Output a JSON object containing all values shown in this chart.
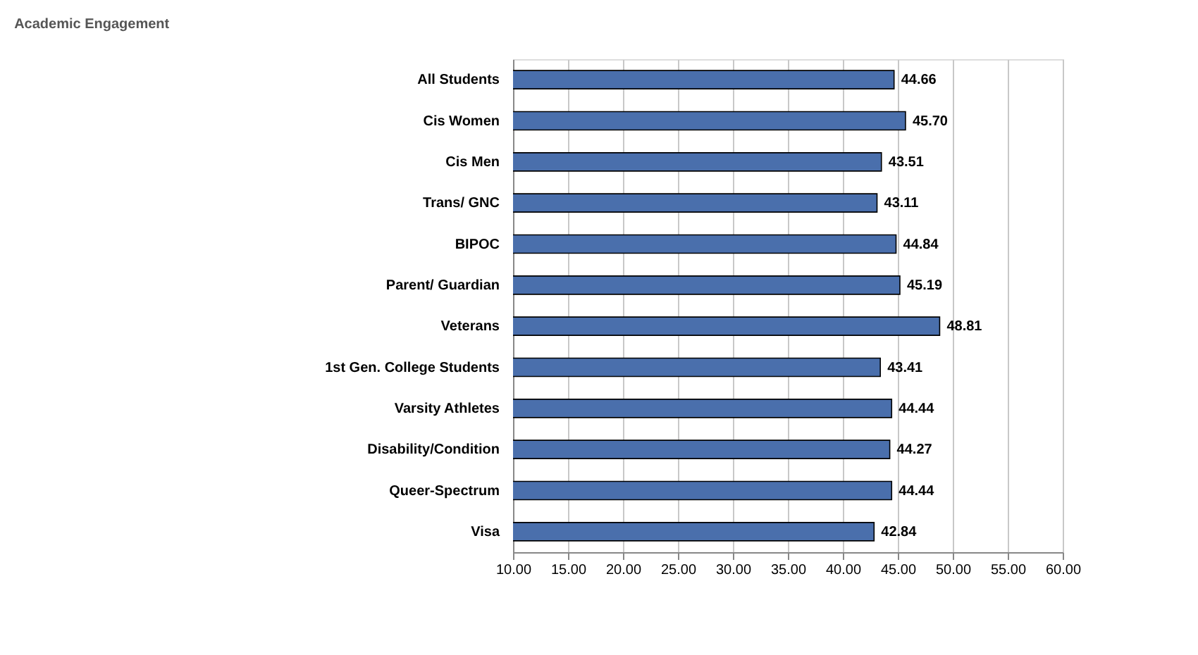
{
  "chart_data": {
    "type": "bar",
    "orientation": "horizontal",
    "title": "Academic Engagement",
    "categories": [
      "All Students",
      "Cis Women",
      "Cis Men",
      "Trans/ GNC",
      "BIPOC",
      "Parent/ Guardian",
      "Veterans",
      "1st Gen. College Students",
      "Varsity Athletes",
      "Disability/Condition",
      "Queer-Spectrum",
      "Visa"
    ],
    "values": [
      44.66,
      45.7,
      43.51,
      43.11,
      44.84,
      45.19,
      48.81,
      43.41,
      44.44,
      44.27,
      44.44,
      42.84
    ],
    "value_labels": [
      "44.66",
      "45.70",
      "43.51",
      "43.11",
      "44.84",
      "45.19",
      "48.81",
      "43.41",
      "44.44",
      "44.27",
      "44.44",
      "42.84"
    ],
    "color": "#4a6fac",
    "xlim": [
      10,
      60
    ],
    "xticks": [
      {
        "value": 10,
        "label": "10.00"
      },
      {
        "value": 15,
        "label": "15.00"
      },
      {
        "value": 20,
        "label": "20.00"
      },
      {
        "value": 25,
        "label": "25.00"
      },
      {
        "value": 30,
        "label": "30.00"
      },
      {
        "value": 35,
        "label": "35.00"
      },
      {
        "value": 40,
        "label": "40.00"
      },
      {
        "value": 45,
        "label": "45.00"
      },
      {
        "value": 50,
        "label": "50.00"
      },
      {
        "value": 55,
        "label": "55.00"
      },
      {
        "value": 60,
        "label": "60.00"
      }
    ],
    "grid": "x"
  }
}
